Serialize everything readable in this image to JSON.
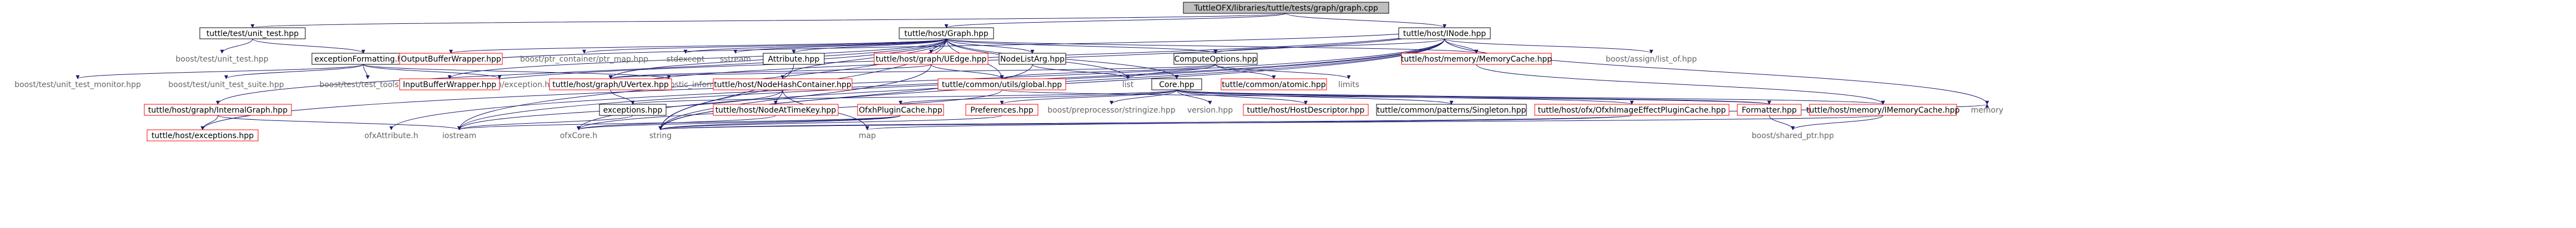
{
  "colors": {
    "root_fill": "#bfbfbf",
    "node_fill": "#ffffff",
    "border_black": "#000000",
    "border_red": "#ff0000",
    "text_default": "#000000",
    "text_gray": "#666666",
    "text_red": "#cc0000",
    "edge": "#191970"
  },
  "nodes": [
    {
      "id": "graph_cpp",
      "label": "TuttleOFX/libraries/tuttle/tests/graph/graph.cpp",
      "style": "root"
    },
    {
      "id": "unit_test",
      "label": "tuttle/test/unit_test.hpp",
      "style": "black"
    },
    {
      "id": "graph_hpp",
      "label": "tuttle/host/Graph.hpp",
      "style": "black"
    },
    {
      "id": "inode_hpp",
      "label": "tuttle/host/INode.hpp",
      "style": "black"
    },
    {
      "id": "boost_unit_test",
      "label": "boost/test/unit_test.hpp",
      "style": "gray"
    },
    {
      "id": "exception_formatting",
      "label": "exceptionFormatting.hpp",
      "style": "black"
    },
    {
      "id": "output_buffer_wrapper",
      "label": "OutputBufferWrapper.hpp",
      "style": "red"
    },
    {
      "id": "ptr_map",
      "label": "boost/ptr_container/ptr_map.hpp",
      "style": "gray"
    },
    {
      "id": "stdexcept",
      "label": "stdexcept",
      "style": "gray"
    },
    {
      "id": "sstream",
      "label": "sstream",
      "style": "gray"
    },
    {
      "id": "attribute_hpp",
      "label": "Attribute.hpp",
      "style": "black"
    },
    {
      "id": "uedge_hpp",
      "label": "tuttle/host/graph/UEdge.hpp",
      "style": "red"
    },
    {
      "id": "node_list_arg",
      "label": "NodeListArg.hpp",
      "style": "black"
    },
    {
      "id": "compute_options",
      "label": "ComputeOptions.hpp",
      "style": "black"
    },
    {
      "id": "memory_cache_hpp",
      "label": "tuttle/host/memory/MemoryCache.hpp",
      "style": "red"
    },
    {
      "id": "assign_list_of",
      "label": "boost/assign/list_of.hpp",
      "style": "gray"
    },
    {
      "id": "unit_test_monitor",
      "label": "boost/test/unit_test_monitor.hpp",
      "style": "gray"
    },
    {
      "id": "unit_test_suite",
      "label": "boost/test/unit_test_suite.hpp",
      "style": "gray"
    },
    {
      "id": "test_tools",
      "label": "boost/test/test_tools.hpp",
      "style": "gray"
    },
    {
      "id": "exception_exception",
      "label": "boost/exception/exception.hpp",
      "style": "gray"
    },
    {
      "id": "diagnostic_information",
      "label": "boost/exception/diagnostic_information.hpp",
      "style": "gray"
    },
    {
      "id": "input_buffer_wrapper",
      "label": "InputBufferWrapper.hpp",
      "style": "red"
    },
    {
      "id": "uvertex_hpp",
      "label": "tuttle/host/graph/UVertex.hpp",
      "style": "red"
    },
    {
      "id": "node_hash_container",
      "label": "tuttle/host/NodeHashContainer.hpp",
      "style": "red"
    },
    {
      "id": "common_utils_global",
      "label": "tuttle/common/utils/global.hpp",
      "style": "red"
    },
    {
      "id": "list",
      "label": "list",
      "style": "gray"
    },
    {
      "id": "core_hpp",
      "label": "Core.hpp",
      "style": "black"
    },
    {
      "id": "common_atomic",
      "label": "tuttle/common/atomic.hpp",
      "style": "red"
    },
    {
      "id": "limits",
      "label": "limits",
      "style": "gray"
    },
    {
      "id": "internal_graph",
      "label": "tuttle/host/graph/InternalGraph.hpp",
      "style": "red"
    },
    {
      "id": "exceptions_hpp",
      "label": "exceptions.hpp",
      "style": "black"
    },
    {
      "id": "node_at_time_key",
      "label": "tuttle/host/NodeAtTimeKey.hpp",
      "style": "red"
    },
    {
      "id": "ofx_plugin_cache",
      "label": "OfxhPluginCache.hpp",
      "style": "red"
    },
    {
      "id": "preferences_hpp",
      "label": "Preferences.hpp",
      "style": "red"
    },
    {
      "id": "preprocessor_stringize",
      "label": "boost/preprocessor/stringize.hpp",
      "style": "gray"
    },
    {
      "id": "version_hpp",
      "label": "version.hpp",
      "style": "gray"
    },
    {
      "id": "host_descriptor",
      "label": "tuttle/host/HostDescriptor.hpp",
      "style": "red"
    },
    {
      "id": "singleton_hpp",
      "label": "tuttle/common/patterns/Singleton.hpp",
      "style": "black"
    },
    {
      "id": "image_effect_plugin_cache",
      "label": "tuttle/host/ofx/OfxhImageEffectPluginCache.hpp",
      "style": "red"
    },
    {
      "id": "formatter_hpp",
      "label": "Formatter.hpp",
      "style": "red"
    },
    {
      "id": "imemory_cache",
      "label": "tuttle/host/memory/IMemoryCache.hpp",
      "style": "red"
    },
    {
      "id": "memory",
      "label": "memory",
      "style": "gray"
    },
    {
      "id": "host_exceptions",
      "label": "tuttle/host/exceptions.hpp",
      "style": "red"
    },
    {
      "id": "ofx_attribute_h",
      "label": "ofxAttribute.h",
      "style": "gray"
    },
    {
      "id": "iostream",
      "label": "iostream",
      "style": "gray"
    },
    {
      "id": "ofx_core_h",
      "label": "ofxCore.h",
      "style": "gray"
    },
    {
      "id": "string",
      "label": "string",
      "style": "gray"
    },
    {
      "id": "map",
      "label": "map",
      "style": "gray"
    },
    {
      "id": "shared_ptr",
      "label": "boost/shared_ptr.hpp",
      "style": "gray"
    }
  ],
  "edges": [
    [
      "graph_cpp",
      "unit_test"
    ],
    [
      "graph_cpp",
      "graph_hpp"
    ],
    [
      "graph_cpp",
      "inode_hpp"
    ],
    [
      "unit_test",
      "boost_unit_test"
    ],
    [
      "unit_test",
      "exception_formatting"
    ],
    [
      "exception_formatting",
      "unit_test_monitor"
    ],
    [
      "exception_formatting",
      "unit_test_suite"
    ],
    [
      "exception_formatting",
      "test_tools"
    ],
    [
      "exception_formatting",
      "exception_exception"
    ],
    [
      "exception_formatting",
      "diagnostic_information"
    ],
    [
      "graph_hpp",
      "output_buffer_wrapper"
    ],
    [
      "graph_hpp",
      "ptr_map"
    ],
    [
      "graph_hpp",
      "stdexcept"
    ],
    [
      "graph_hpp",
      "sstream"
    ],
    [
      "graph_hpp",
      "attribute_hpp"
    ],
    [
      "graph_hpp",
      "uedge_hpp"
    ],
    [
      "graph_hpp",
      "node_list_arg"
    ],
    [
      "graph_hpp",
      "compute_options"
    ],
    [
      "graph_hpp",
      "memory_cache_hpp"
    ],
    [
      "graph_hpp",
      "internal_graph"
    ],
    [
      "graph_hpp",
      "core_hpp"
    ],
    [
      "graph_hpp",
      "node_hash_container"
    ],
    [
      "graph_hpp",
      "uvertex_hpp"
    ],
    [
      "graph_hpp",
      "input_buffer_wrapper"
    ],
    [
      "graph_hpp",
      "common_utils_global"
    ],
    [
      "graph_hpp",
      "list"
    ],
    [
      "graph_hpp",
      "string"
    ],
    [
      "graph_hpp",
      "iostream"
    ],
    [
      "inode_hpp",
      "compute_options"
    ],
    [
      "inode_hpp",
      "memory_cache_hpp"
    ],
    [
      "inode_hpp",
      "assign_list_of"
    ],
    [
      "inode_hpp",
      "memory"
    ],
    [
      "output_buffer_wrapper",
      "inode_hpp"
    ],
    [
      "input_buffer_wrapper",
      "inode_hpp"
    ],
    [
      "attribute_hpp",
      "string"
    ],
    [
      "uedge_hpp",
      "uvertex_hpp"
    ],
    [
      "uedge_hpp",
      "common_utils_global"
    ],
    [
      "uedge_hpp",
      "string"
    ],
    [
      "node_list_arg",
      "list"
    ],
    [
      "node_list_arg",
      "string"
    ],
    [
      "compute_options",
      "common_atomic"
    ],
    [
      "compute_options",
      "limits"
    ],
    [
      "compute_options",
      "list"
    ],
    [
      "compute_options",
      "common_utils_global"
    ],
    [
      "compute_options",
      "uvertex_hpp"
    ],
    [
      "memory_cache_hpp",
      "imemory_cache"
    ],
    [
      "uvertex_hpp",
      "inode_hpp"
    ],
    [
      "uvertex_hpp",
      "exceptions_hpp"
    ],
    [
      "node_hash_container",
      "node_at_time_key"
    ],
    [
      "node_hash_container",
      "map"
    ],
    [
      "node_hash_container",
      "iostream"
    ],
    [
      "common_utils_global",
      "formatter_hpp"
    ],
    [
      "common_utils_global",
      "ofx_core_h"
    ],
    [
      "core_hpp",
      "ofx_plugin_cache"
    ],
    [
      "core_hpp",
      "preferences_hpp"
    ],
    [
      "core_hpp",
      "preprocessor_stringize"
    ],
    [
      "core_hpp",
      "version_hpp"
    ],
    [
      "core_hpp",
      "host_descriptor"
    ],
    [
      "core_hpp",
      "singleton_hpp"
    ],
    [
      "core_hpp",
      "image_effect_plugin_cache"
    ],
    [
      "core_hpp",
      "formatter_hpp"
    ],
    [
      "core_hpp",
      "imemory_cache"
    ],
    [
      "core_hpp",
      "exceptions_hpp"
    ],
    [
      "internal_graph",
      "host_exceptions"
    ],
    [
      "internal_graph",
      "iostream"
    ],
    [
      "inode_hpp",
      "host_exceptions"
    ],
    [
      "inode_hpp",
      "ofx_attribute_h"
    ],
    [
      "inode_hpp",
      "iostream"
    ],
    [
      "inode_hpp",
      "ofx_core_h"
    ],
    [
      "inode_hpp",
      "string"
    ],
    [
      "node_at_time_key",
      "ofx_core_h"
    ],
    [
      "ofx_plugin_cache",
      "ofx_core_h"
    ],
    [
      "ofx_plugin_cache",
      "string"
    ],
    [
      "ofx_plugin_cache",
      "iostream"
    ],
    [
      "preferences_hpp",
      "string"
    ],
    [
      "image_effect_plugin_cache",
      "map"
    ],
    [
      "image_effect_plugin_cache",
      "string"
    ],
    [
      "image_effect_plugin_cache",
      "memory"
    ],
    [
      "formatter_hpp",
      "shared_ptr"
    ],
    [
      "imemory_cache",
      "shared_ptr"
    ],
    [
      "imemory_cache",
      "string"
    ],
    [
      "exceptions_hpp",
      "iostream"
    ]
  ]
}
